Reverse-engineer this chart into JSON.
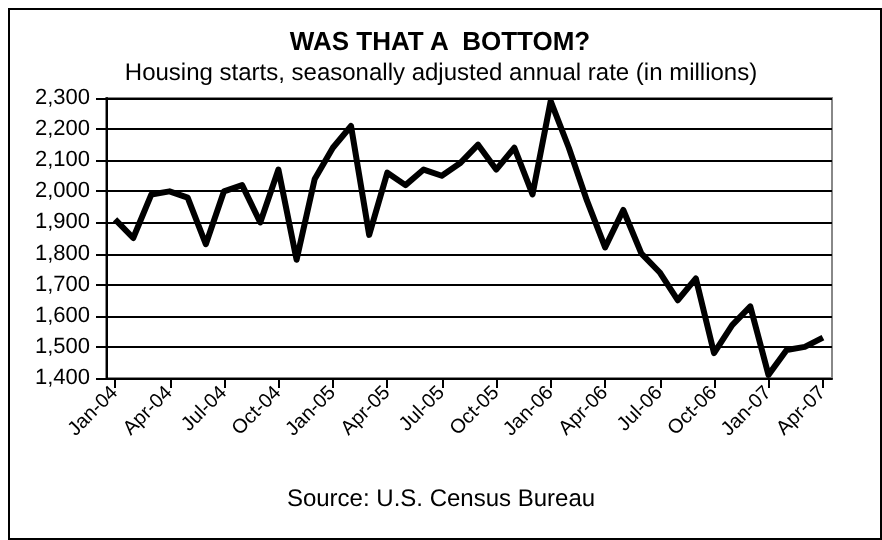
{
  "chart_data": {
    "type": "line",
    "title": "WAS THAT A  BOTTOM?",
    "subtitle": "Housing starts, seasonally adjusted annual rate (in millions)",
    "annotations": [
      "Source: U.S. Census Bureau"
    ],
    "categories": [
      "Jan-04",
      null,
      null,
      "Apr-04",
      null,
      null,
      "Jul-04",
      null,
      null,
      "Oct-04",
      null,
      null,
      "Jan-05",
      null,
      null,
      "Apr-05",
      null,
      null,
      "Jul-05",
      null,
      null,
      "Oct-05",
      null,
      null,
      "Jan-06",
      null,
      null,
      "Apr-06",
      null,
      null,
      "Jul-06",
      null,
      null,
      "Oct-06",
      null,
      null,
      "Jan-07",
      null,
      null,
      "Apr-07"
    ],
    "series": [
      {
        "color": "#000000",
        "values": [
          1910,
          1850,
          1990,
          2000,
          1980,
          1830,
          2000,
          2020,
          1900,
          2070,
          1780,
          2040,
          2140,
          2210,
          1860,
          2060,
          2020,
          2070,
          2050,
          2090,
          2150,
          2070,
          2140,
          1990,
          2290,
          2140,
          1970,
          1820,
          1940,
          1800,
          1740,
          1650,
          1720,
          1480,
          1570,
          1630,
          1410,
          1490,
          1500,
          1530
        ]
      }
    ],
    "ylim": [
      1400,
      2300
    ],
    "yticks": [
      {
        "value": 1400,
        "label": "1,400"
      },
      {
        "value": 1500,
        "label": "1,500"
      },
      {
        "value": 1600,
        "label": "1,600"
      },
      {
        "value": 1700,
        "label": "1,700"
      },
      {
        "value": 1800,
        "label": "1,800"
      },
      {
        "value": 1900,
        "label": "1,900"
      },
      {
        "value": 2000,
        "label": "2,000"
      },
      {
        "value": 2100,
        "label": "2,100"
      },
      {
        "value": 2200,
        "label": "2,200"
      },
      {
        "value": 2300,
        "label": "2,300"
      }
    ],
    "grid": "y",
    "marker": "none",
    "line_style": "solid"
  }
}
